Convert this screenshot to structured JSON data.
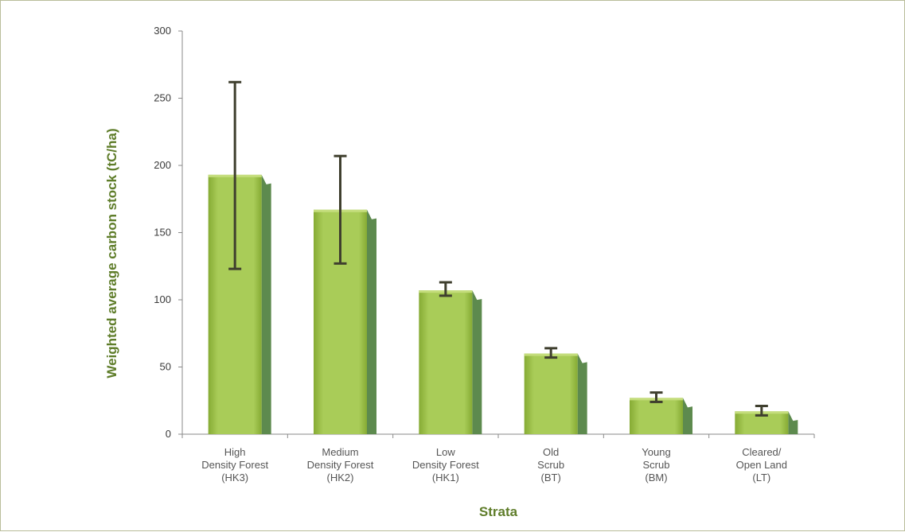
{
  "colors": {
    "bar_front": "#a9cc58",
    "bar_front_dark": "#86ab34",
    "bar_top": "#c4dd7c",
    "bar_side": "#5d8a4e",
    "error_bar": "#3f3f2e",
    "axis": "#8a8a8a",
    "axis_title": "#5f7d2a"
  },
  "chart_data": {
    "type": "bar",
    "categories": [
      [
        "High",
        "Density Forest",
        "(HK3)"
      ],
      [
        "Medium",
        "Density Forest",
        "(HK2)"
      ],
      [
        "Low",
        "Density Forest",
        "(HK1)"
      ],
      [
        "Old",
        "Scrub",
        "(BT)"
      ],
      [
        "Young",
        "Scrub",
        "(BM)"
      ],
      [
        "Cleared/",
        "Open Land",
        "(LT)"
      ]
    ],
    "values": [
      193,
      167,
      107,
      60,
      27,
      17
    ],
    "error_low": [
      123,
      127,
      103,
      57,
      24,
      14
    ],
    "error_high": [
      262,
      207,
      113,
      64,
      31,
      21
    ],
    "xlabel": "Strata",
    "ylabel": "Weighted average carbon stock (tC/ha)",
    "ylim": [
      0,
      300
    ],
    "yticks": [
      0,
      50,
      100,
      150,
      200,
      250,
      300
    ],
    "grid": false,
    "legend": "none"
  }
}
